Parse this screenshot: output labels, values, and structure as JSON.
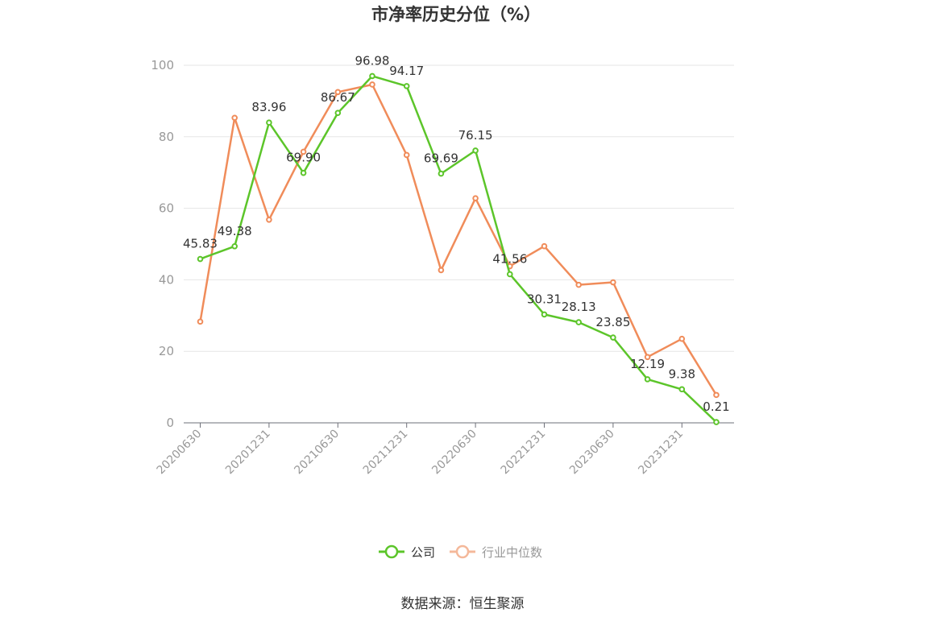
{
  "chart_data": {
    "type": "line",
    "title": "市净率历史分位（%）",
    "ylim": [
      0,
      100
    ],
    "yticks": [
      0,
      20,
      40,
      60,
      80,
      100
    ],
    "x_tick_labels": [
      "20200630",
      "20201231",
      "20210630",
      "20211231",
      "20220630",
      "20221231",
      "20230630",
      "20231231"
    ],
    "n_points": 16,
    "grid": true,
    "legend_position": "bottom",
    "series": [
      {
        "name": "公司",
        "color": "#5cc52a",
        "values": [
          45.83,
          49.38,
          83.96,
          69.9,
          86.67,
          96.98,
          94.17,
          69.69,
          76.15,
          41.56,
          30.31,
          28.13,
          23.85,
          12.19,
          9.38,
          0.21
        ],
        "labels": [
          "45.83",
          "49.38",
          "83.96",
          "69.90",
          "86.67",
          "96.98",
          "94.17",
          "69.69",
          "76.15",
          "41.56",
          "30.31",
          "28.13",
          "23.85",
          "12.19",
          "9.38",
          "0.21"
        ]
      },
      {
        "name": "行业中位数",
        "color": "#f08c5a",
        "values": [
          28.3,
          85.3,
          56.8,
          75.8,
          92.5,
          94.6,
          74.9,
          42.7,
          62.8,
          43.8,
          49.4,
          38.6,
          39.3,
          18.4,
          23.5,
          7.8
        ]
      }
    ]
  },
  "source": "数据来源：恒生聚源"
}
